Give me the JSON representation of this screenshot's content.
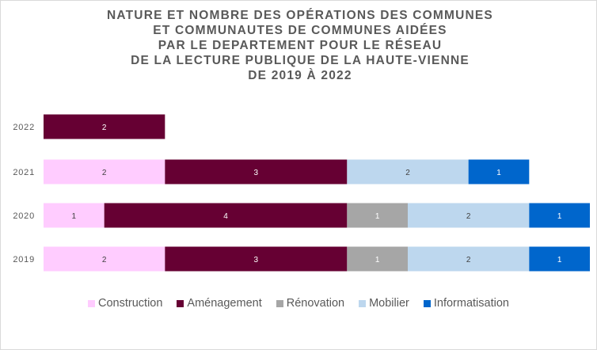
{
  "title_lines": [
    "NATURE ET NOMBRE DES OPÉRATIONS DES COMMUNES",
    "ET COMMUNAUTES DE COMMUNES AIDÉES",
    "PAR LE DEPARTEMENT POUR LE RÉSEAU",
    "DE LA LECTURE PUBLIQUE DE LA HAUTE-VIENNE",
    "DE 2019 À 2022"
  ],
  "chart_data": {
    "type": "bar",
    "orientation": "horizontal",
    "stacked": true,
    "title": "NATURE ET NOMBRE DES OPÉRATIONS DES COMMUNES ET COMMUNAUTES DE COMMUNES AIDÉES PAR LE DEPARTEMENT POUR LE RÉSEAU DE LA LECTURE PUBLIQUE DE LA HAUTE-VIENNE DE 2019 À 2022",
    "categories": [
      "2022",
      "2021",
      "2020",
      "2019"
    ],
    "series": [
      {
        "name": "Construction",
        "color": "#ffccff",
        "label_color": "#404040",
        "values": [
          0,
          2,
          1,
          2
        ]
      },
      {
        "name": "Aménagement",
        "color": "#660033",
        "label_color": "#ffffff",
        "values": [
          2,
          3,
          4,
          3
        ]
      },
      {
        "name": "Rénovation",
        "color": "#a6a6a6",
        "label_color": "#ffffff",
        "values": [
          0,
          0,
          1,
          1
        ]
      },
      {
        "name": "Mobilier",
        "color": "#bdd7ee",
        "label_color": "#404040",
        "values": [
          0,
          2,
          2,
          2
        ]
      },
      {
        "name": "Informatisation",
        "color": "#0066cc",
        "label_color": "#ffffff",
        "values": [
          0,
          1,
          1,
          1
        ]
      }
    ],
    "xlim": [
      0,
      9
    ],
    "grid": false,
    "legend_position": "bottom",
    "xlabel": "",
    "ylabel": ""
  }
}
